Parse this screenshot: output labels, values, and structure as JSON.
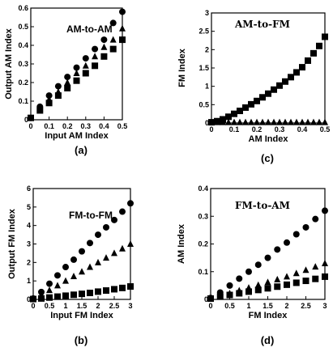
{
  "chart_data": [
    {
      "type": "scatter",
      "panel": "(a)",
      "caption": "(a)",
      "inset_label": "AM-to-AM",
      "xlabel": "Input AM Index",
      "ylabel": "Output AM Index",
      "xlim": [
        0,
        0.5
      ],
      "ylim": [
        0,
        0.6
      ],
      "xticks": [
        "0",
        "0.1",
        "0.2",
        "0.3",
        "0.4",
        "0.5"
      ],
      "yticks": [
        "0",
        "0.1",
        "0.2",
        "0.3",
        "0.4",
        "0.5",
        "0.6"
      ],
      "x": [
        0,
        0.05,
        0.1,
        0.15,
        0.2,
        0.25,
        0.3,
        0.35,
        0.4,
        0.45,
        0.5
      ],
      "series": [
        {
          "marker": "circle",
          "values": [
            0.01,
            0.07,
            0.13,
            0.18,
            0.23,
            0.28,
            0.33,
            0.38,
            0.43,
            0.52,
            0.58
          ]
        },
        {
          "marker": "triangle",
          "values": [
            0.01,
            0.06,
            0.11,
            0.15,
            0.2,
            0.25,
            0.29,
            0.34,
            0.39,
            0.43,
            0.49
          ]
        },
        {
          "marker": "square",
          "values": [
            0.01,
            0.05,
            0.09,
            0.13,
            0.17,
            0.21,
            0.25,
            0.29,
            0.34,
            0.38,
            0.43
          ]
        }
      ]
    },
    {
      "type": "scatter",
      "panel": "(c)",
      "caption": "(c)",
      "inset_label": "AM-to-FM",
      "xlabel": "AM Index",
      "ylabel": "FM Index",
      "xlim": [
        0,
        0.5
      ],
      "ylim": [
        0,
        3
      ],
      "xticks": [
        "0",
        "0.1",
        "0.2",
        "0.3",
        "0.4",
        "0.5"
      ],
      "yticks": [
        "0",
        "0.5",
        "1",
        "1.5",
        "2",
        "2.5",
        "3"
      ],
      "x": [
        0,
        0.025,
        0.05,
        0.075,
        0.1,
        0.125,
        0.15,
        0.175,
        0.2,
        0.225,
        0.25,
        0.275,
        0.3,
        0.325,
        0.35,
        0.375,
        0.4,
        0.425,
        0.45,
        0.475,
        0.5
      ],
      "series": [
        {
          "marker": "square",
          "values": [
            0.02,
            0.05,
            0.1,
            0.17,
            0.25,
            0.33,
            0.42,
            0.51,
            0.6,
            0.7,
            0.8,
            0.91,
            1.02,
            1.13,
            1.25,
            1.38,
            1.52,
            1.7,
            1.9,
            2.1,
            2.35
          ]
        },
        {
          "marker": "triangle",
          "values": [
            0.02,
            0.02,
            0.02,
            0.02,
            0.02,
            0.02,
            0.02,
            0.02,
            0.02,
            0.02,
            0.02,
            0.02,
            0.02,
            0.02,
            0.02,
            0.02,
            0.02,
            0.02,
            0.02,
            0.02,
            0.02
          ]
        }
      ]
    },
    {
      "type": "scatter",
      "panel": "(b)",
      "caption": "(b)",
      "inset_label": "FM-to-FM",
      "xlabel": "Input FM Index",
      "ylabel": "Output FM Index",
      "xlim": [
        0,
        3
      ],
      "ylim": [
        0,
        6
      ],
      "xticks": [
        "0",
        "0.5",
        "1",
        "1.5",
        "2",
        "2.5",
        "3"
      ],
      "yticks": [
        "0",
        "1",
        "2",
        "3",
        "4",
        "5",
        "6"
      ],
      "x": [
        0,
        0.25,
        0.5,
        0.75,
        1,
        1.25,
        1.5,
        1.75,
        2,
        2.25,
        2.5,
        2.75,
        3
      ],
      "series": [
        {
          "marker": "circle",
          "values": [
            0.05,
            0.4,
            0.85,
            1.3,
            1.75,
            2.15,
            2.6,
            3.05,
            3.5,
            3.9,
            4.3,
            4.75,
            5.2
          ]
        },
        {
          "marker": "triangle",
          "values": [
            0.05,
            0.25,
            0.5,
            0.75,
            1,
            1.25,
            1.5,
            1.75,
            2,
            2.25,
            2.5,
            2.75,
            3
          ]
        },
        {
          "marker": "square",
          "values": [
            0.02,
            0.05,
            0.1,
            0.15,
            0.2,
            0.25,
            0.3,
            0.35,
            0.42,
            0.48,
            0.55,
            0.62,
            0.7
          ]
        }
      ]
    },
    {
      "type": "scatter",
      "panel": "(d)",
      "caption": "(d)",
      "inset_label": "FM-to-AM",
      "xlabel": "FM Index",
      "ylabel": "AM Index",
      "xlim": [
        0,
        3
      ],
      "ylim": [
        0,
        0.4
      ],
      "xticks": [
        "0",
        "0.5",
        "1",
        "1.5",
        "2",
        "2.5",
        "3"
      ],
      "yticks": [
        "0",
        "0.1",
        "0.2",
        "0.3",
        "0.4"
      ],
      "x": [
        0,
        0.25,
        0.5,
        0.75,
        1,
        1.25,
        1.5,
        1.75,
        2,
        2.25,
        2.5,
        2.75,
        3
      ],
      "series": [
        {
          "marker": "circle",
          "values": [
            0.005,
            0.025,
            0.05,
            0.075,
            0.1,
            0.125,
            0.15,
            0.18,
            0.205,
            0.235,
            0.26,
            0.29,
            0.32
          ]
        },
        {
          "marker": "triangle",
          "values": [
            0.005,
            0.012,
            0.022,
            0.032,
            0.042,
            0.052,
            0.062,
            0.072,
            0.082,
            0.094,
            0.106,
            0.118,
            0.13
          ]
        },
        {
          "marker": "square",
          "values": [
            0.003,
            0.01,
            0.016,
            0.022,
            0.028,
            0.034,
            0.04,
            0.046,
            0.053,
            0.06,
            0.067,
            0.074,
            0.082
          ]
        }
      ]
    }
  ]
}
